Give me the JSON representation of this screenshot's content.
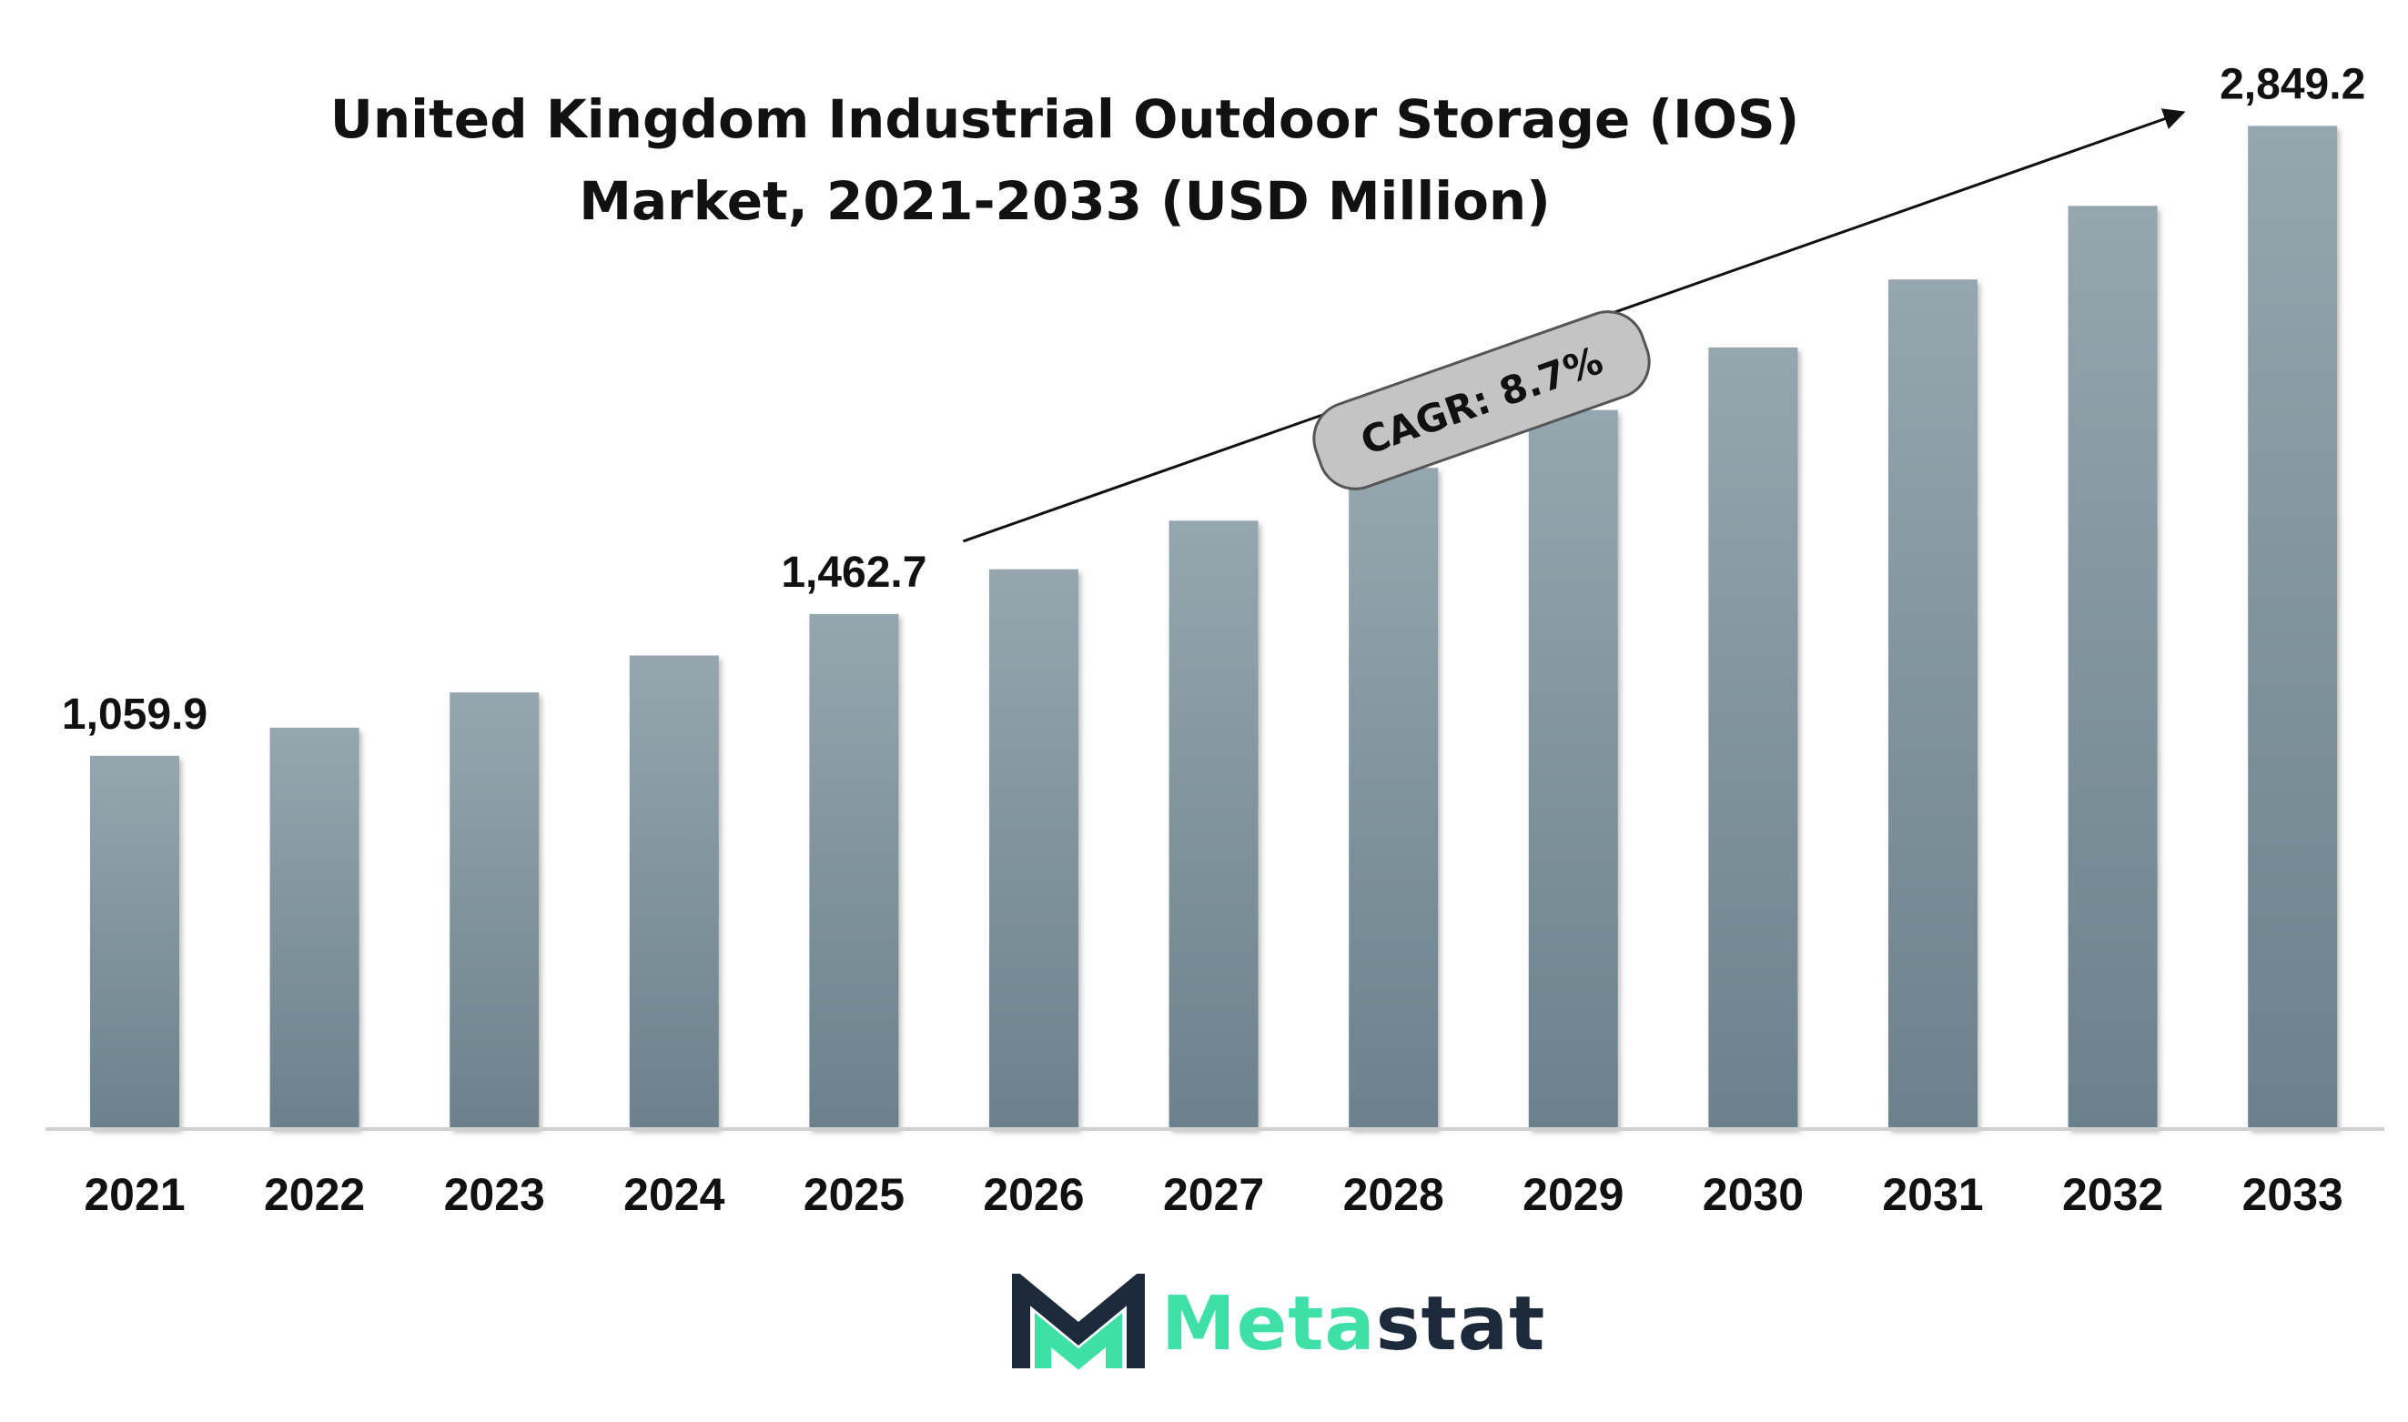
{
  "chart_data": {
    "type": "bar",
    "title": "United Kingdom Industrial Outdoor Storage (IOS) Market, 2021-2033 (USD Million)",
    "categories": [
      "2021",
      "2022",
      "2023",
      "2024",
      "2025",
      "2026",
      "2027",
      "2028",
      "2029",
      "2030",
      "2031",
      "2032",
      "2033"
    ],
    "values": [
      1059.9,
      1140,
      1240,
      1345,
      1462.7,
      1590,
      1728,
      1878,
      2042,
      2220,
      2413,
      2622,
      2849.2
    ],
    "value_labels": [
      {
        "index": 0,
        "text": "1,059.9"
      },
      {
        "index": 4,
        "text": "1,462.7"
      },
      {
        "index": 12,
        "text": "2,849.2"
      }
    ],
    "annotation": {
      "text": "CAGR: 8.7%",
      "from_index": 4,
      "to_index": 12
    },
    "ylim": [
      0,
      3000
    ],
    "grid": false,
    "legend": "none",
    "bar_color_top": "#95a6ae",
    "bar_color_bottom": "#6b818c",
    "annotation_fill": "#c4c4c4"
  },
  "brand": {
    "name_part_a": "Meta",
    "name_part_b": "stat",
    "logo_icon": "metastat-m-logo-icon"
  }
}
